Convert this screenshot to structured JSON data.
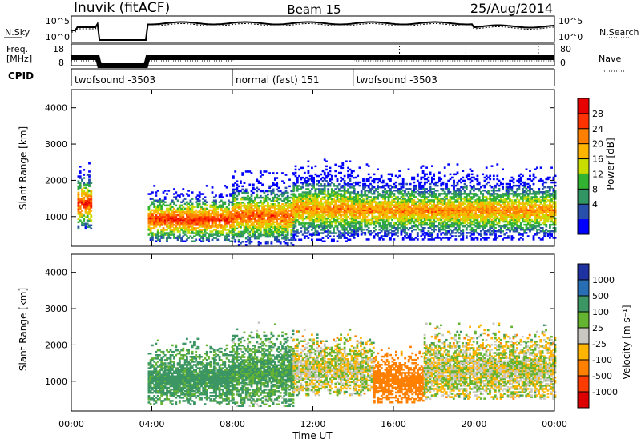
{
  "header": {
    "station": "Inuvik (fitACF)",
    "beam": "Beam 15",
    "date": "25/Aug/2014"
  },
  "summary_panels": {
    "nsky_label": "N.Sky",
    "nsearch_label": "N.Search",
    "noise_ticks": [
      "10^5",
      "10^0"
    ],
    "freq_label_1": "Freq.",
    "freq_label_2": "[MHz]",
    "freq_ticks": [
      "18",
      "8"
    ],
    "nave_label": "Nave",
    "nave_ticks": [
      "80",
      "0"
    ],
    "cpid_label": "CPID",
    "cpid_segments": [
      {
        "name": "twofsound -3503",
        "start": 0.0,
        "end": 8.0
      },
      {
        "name": "normal (fast) 151",
        "start": 8.0,
        "end": 14.0
      },
      {
        "name": "twofsound -3503",
        "start": 14.0,
        "end": 24.0
      }
    ]
  },
  "x_axis": {
    "label": "Time UT",
    "ticks": [
      "00:00",
      "04:00",
      "08:00",
      "12:00",
      "16:00",
      "20:00",
      "00:00"
    ]
  },
  "power_panel": {
    "ylabel": "Slant Range [km]",
    "yticks": [
      "1000",
      "2000",
      "3000",
      "4000"
    ],
    "cbar_label": "Power [dB]",
    "cbar_ticks": [
      "28",
      "24",
      "20",
      "16",
      "12",
      "8",
      "4"
    ],
    "cbar_colors": [
      "#e60000",
      "#ff3300",
      "#ff8000",
      "#ffb400",
      "#c8dc00",
      "#32b432",
      "#329664",
      "#2850aa",
      "#0000ff"
    ]
  },
  "velocity_panel": {
    "ylabel": "Slant Range [km]",
    "yticks": [
      "1000",
      "2000",
      "3000",
      "4000"
    ],
    "cbar_label": "Velocity [m s⁻¹]",
    "cbar_ticks": [
      "1000",
      "500",
      "100",
      "25",
      "-25",
      "-100",
      "-500",
      "-1000"
    ],
    "cbar_colors": [
      "#1e32a0",
      "#286eb4",
      "#3c9664",
      "#64b432",
      "#c8c8c0",
      "#ffb400",
      "#ff8000",
      "#ff3c00",
      "#dc0000"
    ]
  },
  "chart_data": {
    "type": "heatmap",
    "x_range_hours": [
      0,
      24
    ],
    "y_range_km": [
      180,
      4500
    ],
    "no_data_intervals_hours": [
      [
        1.3,
        3.8
      ]
    ],
    "power_echo_bands": [
      {
        "start": 0.3,
        "end": 1.0,
        "center_km": 1350,
        "width_km": 700,
        "peak_db": 26
      },
      {
        "start": 3.8,
        "end": 8.0,
        "center_km": 900,
        "width_km": 600,
        "peak_db": 26
      },
      {
        "start": 8.0,
        "end": 11.0,
        "center_km": 1000,
        "width_km": 800,
        "peak_db": 24
      },
      {
        "start": 11.0,
        "end": 14.0,
        "center_km": 1200,
        "width_km": 900,
        "peak_db": 22
      },
      {
        "start": 14.0,
        "end": 24.0,
        "center_km": 1150,
        "width_km": 800,
        "peak_db": 22
      }
    ],
    "velocity_echo_bands": [
      {
        "start": 3.8,
        "end": 8.0,
        "center_km": 1050,
        "width_km": 700,
        "velocity": 150
      },
      {
        "start": 8.0,
        "end": 11.0,
        "center_km": 1200,
        "width_km": 900,
        "velocity": 120
      },
      {
        "start": 11.0,
        "end": 15.0,
        "center_km": 1300,
        "width_km": 700,
        "velocity": 0
      },
      {
        "start": 15.0,
        "end": 17.5,
        "center_km": 1000,
        "width_km": 600,
        "velocity": -200
      },
      {
        "start": 17.5,
        "end": 24.0,
        "center_km": 1300,
        "width_km": 800,
        "velocity": 0
      }
    ]
  }
}
